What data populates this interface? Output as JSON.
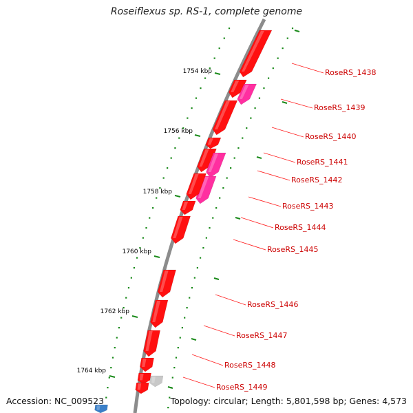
{
  "title": "Roseiflexus sp. RS-1, complete genome",
  "accession": "Accession: NC_009523",
  "topology": "Topology: circular; Length: 5,801,598 bp; Genes: 4,573",
  "colors": {
    "backbone": "#8c8c8c",
    "gene_red": "#ff1010",
    "gene_magenta": "#ff2fa0",
    "gene_gray": "#c8c8c8",
    "gene_blue": "#3a7fc8",
    "tick_green": "#1a8a1a",
    "label_red": "#cc0000"
  },
  "scale_labels": [
    "1754 kbp",
    "1756 kbp",
    "1758 kbp",
    "1760 kbp",
    "1762 kbp",
    "1764 kbp"
  ],
  "gene_labels": [
    "RoseRS_1438",
    "RoseRS_1439",
    "RoseRS_1440",
    "RoseRS_1441",
    "RoseRS_1442",
    "RoseRS_1443",
    "RoseRS_1444",
    "RoseRS_1445",
    "RoseRS_1446",
    "RoseRS_1447",
    "RoseRS_1448",
    "RoseRS_1449"
  ]
}
